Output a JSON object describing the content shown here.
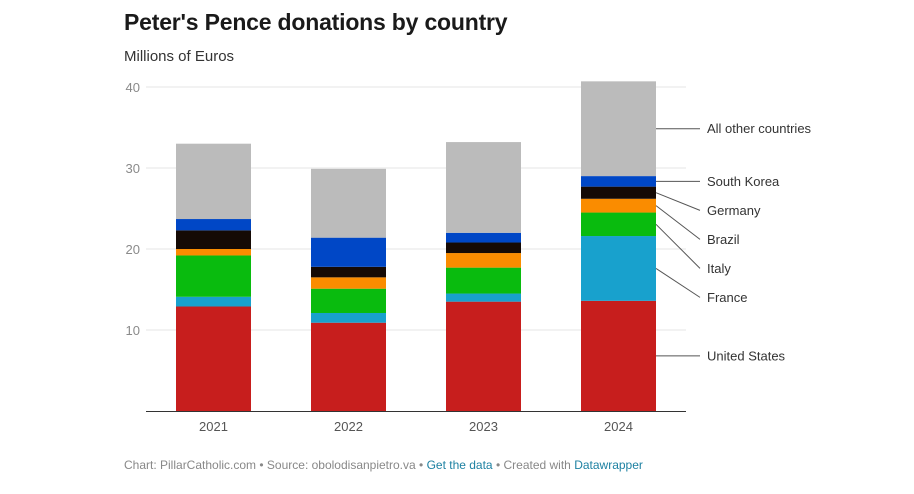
{
  "header": {
    "title": "Peter's Pence donations by country",
    "subtitle": "Millions of Euros"
  },
  "footer": {
    "chart_credit": "Chart: PillarCatholic.com",
    "sep1": " • ",
    "source": "Source: obolodisanpietro.va",
    "sep2": " • ",
    "get_data": "Get the data",
    "sep3": " • ",
    "created_with": "Created with ",
    "datawrapper": "Datawrapper"
  },
  "chart_data": {
    "type": "bar",
    "stacked": true,
    "title": "Peter's Pence donations by country",
    "subtitle": "Millions of Euros",
    "xlabel": "",
    "ylabel": "",
    "ylim": [
      0,
      40
    ],
    "yticks": [
      10,
      20,
      30,
      40
    ],
    "grid": true,
    "legend": "direct labels right",
    "categories": [
      "2021",
      "2022",
      "2023",
      "2024"
    ],
    "series": [
      {
        "name": "United States",
        "color": "#c71e1d",
        "values": [
          12.9,
          10.9,
          13.5,
          13.6
        ]
      },
      {
        "name": "France",
        "color": "#18a1cd",
        "values": [
          1.2,
          1.2,
          1.0,
          8.0
        ]
      },
      {
        "name": "Italy",
        "color": "#09bb0e",
        "values": [
          5.1,
          3.0,
          3.2,
          2.9
        ]
      },
      {
        "name": "Brazil",
        "color": "#fa8c00",
        "values": [
          0.8,
          1.4,
          1.8,
          1.7
        ]
      },
      {
        "name": "Germany",
        "color": "#150a05",
        "values": [
          2.3,
          1.3,
          1.3,
          1.5
        ]
      },
      {
        "name": "South Korea",
        "color": "#0047c6",
        "values": [
          1.4,
          3.6,
          1.2,
          1.3
        ]
      },
      {
        "name": "All other countries",
        "color": "#bbbbbb",
        "values": [
          9.3,
          8.5,
          11.2,
          11.7
        ]
      }
    ]
  }
}
